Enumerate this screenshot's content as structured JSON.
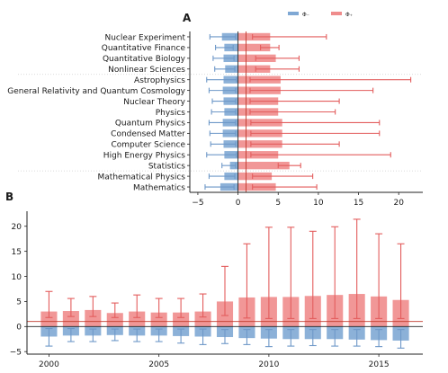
{
  "colors": {
    "neg": "#7fa8d4",
    "neg_whisker": "#6e98c8",
    "pos": "#ef8c8c",
    "pos_whisker": "#e35d5d",
    "axis": "#222222",
    "grid": "#cfcfcf"
  },
  "chart_data": [
    {
      "panel": "A",
      "type": "bar",
      "orientation": "horizontal",
      "legend": {
        "placement": "top-right",
        "entries": [
          {
            "label": "Φ₋",
            "color": "#7fa8d4"
          },
          {
            "label": "Φ₊",
            "color": "#ef8c8c"
          }
        ]
      },
      "xlim": [
        -6,
        23
      ],
      "xticks": [
        -5,
        0,
        5,
        10,
        15,
        20
      ],
      "xtick_labels": [
        "−5",
        "0",
        "5",
        "10",
        "15",
        "20"
      ],
      "reference_line_x": 1,
      "group_separators_after": [
        3,
        12
      ],
      "categories": [
        "Nuclear Experiment",
        "Quantitative Finance",
        "Quantitative Biology",
        "Nonlinear Sciences",
        "Astrophysics",
        "General Relativity and Quantum Cosmology",
        "Nuclear Theory",
        "Physics",
        "Quantum Physics",
        "Condensed Matter",
        "Computer Science",
        "High Energy Physics",
        "Statistics",
        "Mathematical Physics",
        "Mathematics"
      ],
      "series": [
        {
          "name": "Φ₋",
          "values": [
            -2.0,
            -1.7,
            -1.8,
            -1.6,
            -1.8,
            -1.9,
            -1.8,
            -1.7,
            -1.9,
            -1.9,
            -1.8,
            -1.7,
            -1.0,
            -1.7,
            -2.2
          ],
          "err_low": [
            -3.5,
            -2.8,
            -3.1,
            -2.9,
            -3.9,
            -3.6,
            -3.2,
            -3.3,
            -3.6,
            -3.5,
            -3.4,
            -3.9,
            -2.0,
            -3.6,
            -4.1
          ],
          "err_high": [
            -0.3,
            -0.6,
            -0.5,
            -0.4,
            -0.2,
            -0.3,
            -0.3,
            -0.3,
            -0.3,
            -0.3,
            -0.3,
            -0.2,
            -0.3,
            -0.4,
            -0.5
          ]
        },
        {
          "name": "Φ₊",
          "values": [
            4.0,
            4.0,
            4.7,
            4.0,
            5.3,
            5.3,
            5.0,
            5.0,
            5.5,
            5.5,
            5.5,
            5.0,
            6.4,
            4.2,
            4.7
          ],
          "err_low": [
            1.8,
            2.8,
            2.2,
            2.2,
            1.5,
            1.5,
            1.5,
            1.5,
            1.6,
            1.6,
            1.6,
            1.6,
            5.0,
            1.8,
            1.8
          ],
          "err_high": [
            11.0,
            5.1,
            7.6,
            7.6,
            21.5,
            16.8,
            12.6,
            12.1,
            17.6,
            17.6,
            12.6,
            19.0,
            7.8,
            9.3,
            9.8
          ]
        }
      ]
    },
    {
      "panel": "B",
      "type": "bar",
      "orientation": "vertical",
      "ylim": [
        -5.5,
        23
      ],
      "yticks": [
        -5,
        0,
        5,
        10,
        15,
        20
      ],
      "ytick_labels": [
        "−5",
        "0",
        "5",
        "10",
        "15",
        "20"
      ],
      "xlim": [
        1999,
        2017
      ],
      "xticks": [
        2000,
        2005,
        2010,
        2015
      ],
      "xtick_labels": [
        "2000",
        "2005",
        "2010",
        "2015"
      ],
      "reference_line_y": 1,
      "x": [
        2000,
        2001,
        2002,
        2003,
        2004,
        2005,
        2006,
        2007,
        2008,
        2009,
        2010,
        2011,
        2012,
        2013,
        2014,
        2015,
        2016
      ],
      "series": [
        {
          "name": "Φ₋",
          "values": [
            -2.0,
            -1.8,
            -1.8,
            -1.7,
            -1.8,
            -1.8,
            -1.9,
            -2.0,
            -2.1,
            -2.3,
            -2.4,
            -2.5,
            -2.5,
            -2.5,
            -2.6,
            -2.7,
            -2.8
          ],
          "err_low": [
            -3.9,
            -3.0,
            -3.0,
            -2.8,
            -3.0,
            -3.0,
            -3.3,
            -3.6,
            -3.4,
            -3.6,
            -4.0,
            -3.9,
            -3.8,
            -3.9,
            -3.9,
            -4.0,
            -4.3
          ],
          "err_high": [
            -0.4,
            -0.4,
            -0.5,
            -0.5,
            -0.5,
            -0.5,
            -0.5,
            -0.5,
            -0.6,
            -0.6,
            -0.6,
            -0.6,
            -0.6,
            -0.6,
            -0.6,
            -0.6,
            -0.6
          ]
        },
        {
          "name": "Φ₊",
          "values": [
            3.0,
            3.1,
            3.3,
            2.7,
            3.0,
            2.8,
            2.8,
            3.0,
            5.0,
            5.8,
            5.9,
            5.9,
            6.1,
            6.3,
            6.5,
            6.0,
            5.3
          ],
          "err_low": [
            1.8,
            2.0,
            2.0,
            1.8,
            1.8,
            1.8,
            1.8,
            1.9,
            2.2,
            1.7,
            1.6,
            1.6,
            1.6,
            1.6,
            1.6,
            1.6,
            1.6
          ],
          "err_high": [
            7.0,
            5.6,
            6.0,
            4.7,
            6.3,
            5.6,
            5.6,
            6.5,
            12.0,
            16.5,
            19.8,
            19.8,
            19.0,
            19.9,
            21.4,
            18.5,
            16.5
          ]
        }
      ]
    }
  ]
}
